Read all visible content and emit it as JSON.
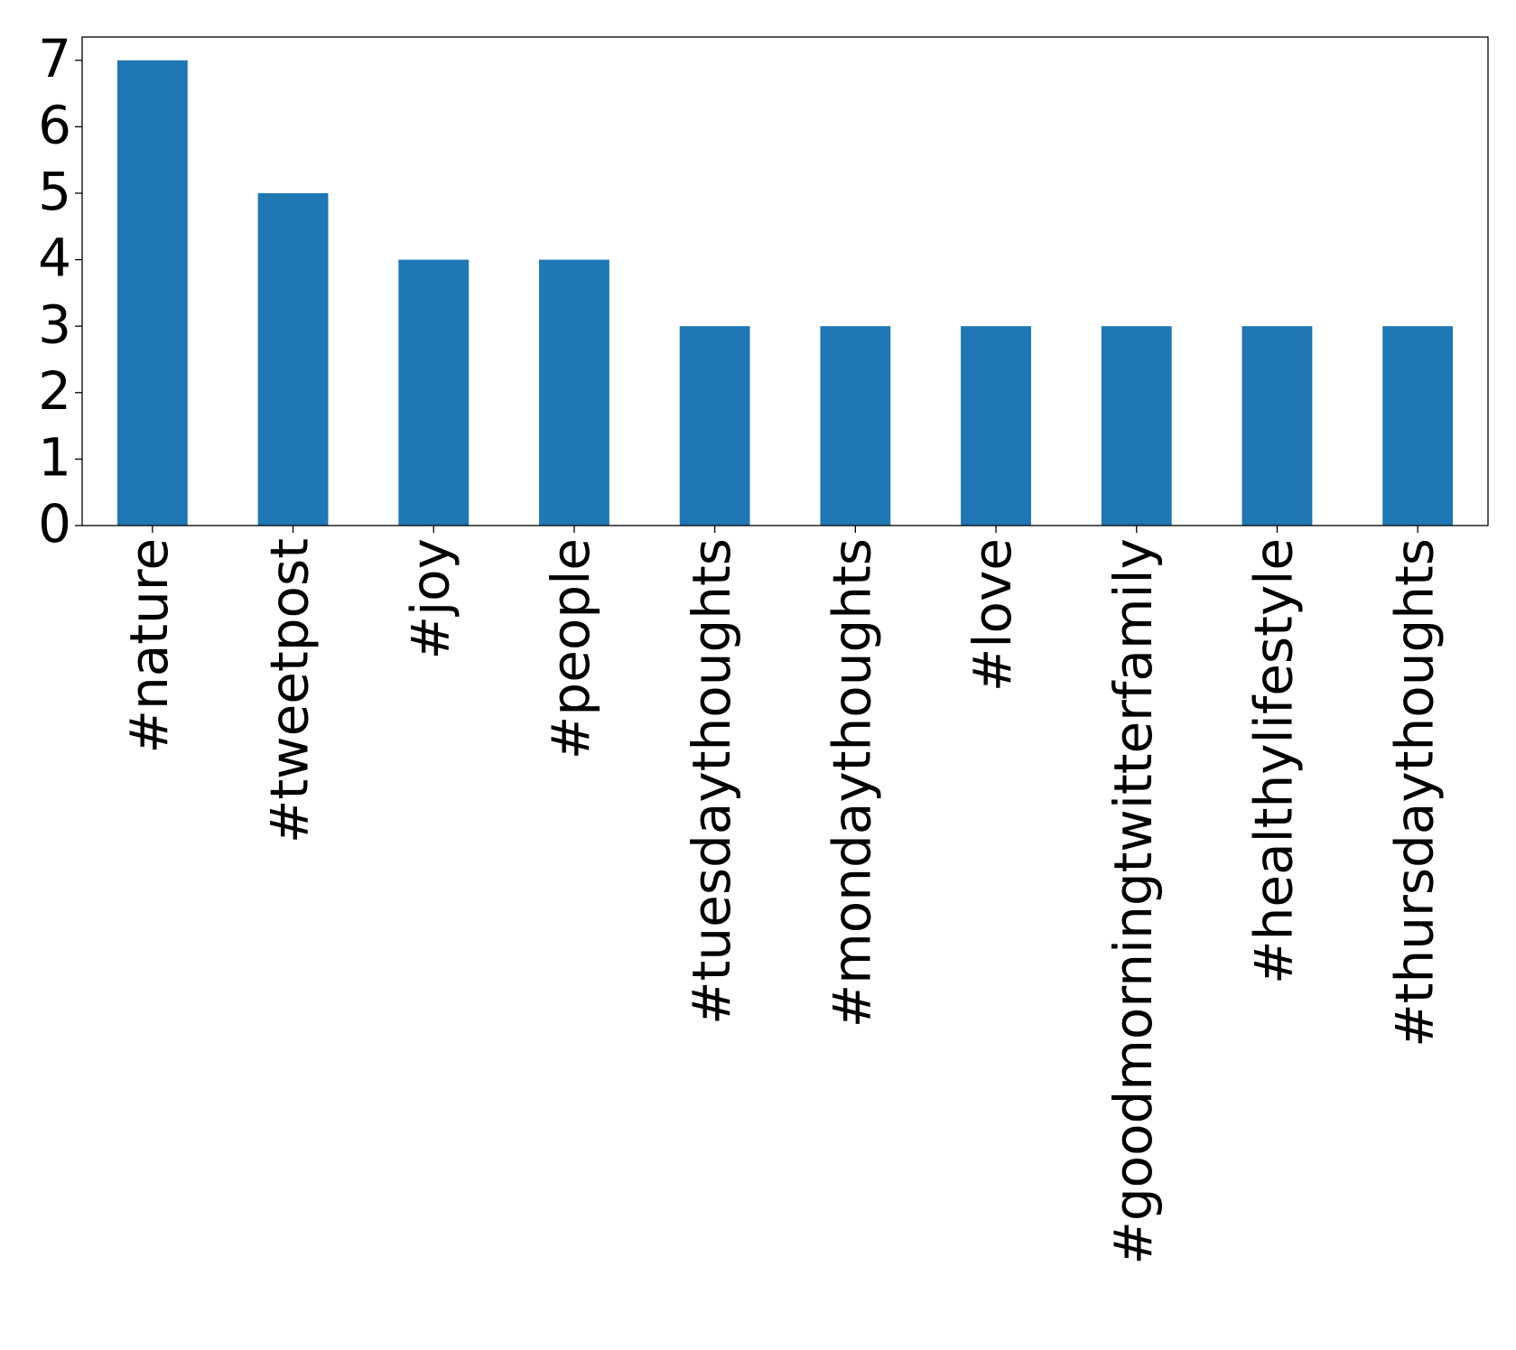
{
  "chart_data": {
    "type": "bar",
    "categories": [
      "#nature",
      "#tweetpost",
      "#joy",
      "#people",
      "#tuesdaythoughts",
      "#mondaythoughts",
      "#love",
      "#goodmorningtwitterfamily",
      "#healthylifestyle",
      "#thursdaythoughts"
    ],
    "values": [
      7,
      5,
      4,
      4,
      3,
      3,
      3,
      3,
      3,
      3
    ],
    "color": "#1f77b4",
    "ylim": [
      0,
      7.35
    ],
    "yticks": [
      0,
      1,
      2,
      3,
      4,
      5,
      6,
      7
    ],
    "grid": false
  }
}
